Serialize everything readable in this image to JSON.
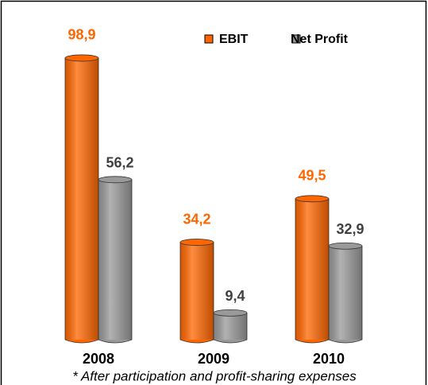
{
  "chart_data": {
    "type": "bar",
    "categories": [
      "2008",
      "2009",
      "2010"
    ],
    "series": [
      {
        "name": "EBIT",
        "color": "#ff6600",
        "values": [
          98.9,
          34.2,
          49.5
        ],
        "value_labels": [
          "98,9",
          "34,2",
          "49,5"
        ]
      },
      {
        "name": "Net Profit",
        "color": "#999999",
        "values": [
          56.2,
          9.4,
          32.9
        ],
        "value_labels": [
          "56,2",
          "9,4",
          "32,9"
        ]
      }
    ],
    "note": "* After participation and profit-sharing expenses"
  }
}
